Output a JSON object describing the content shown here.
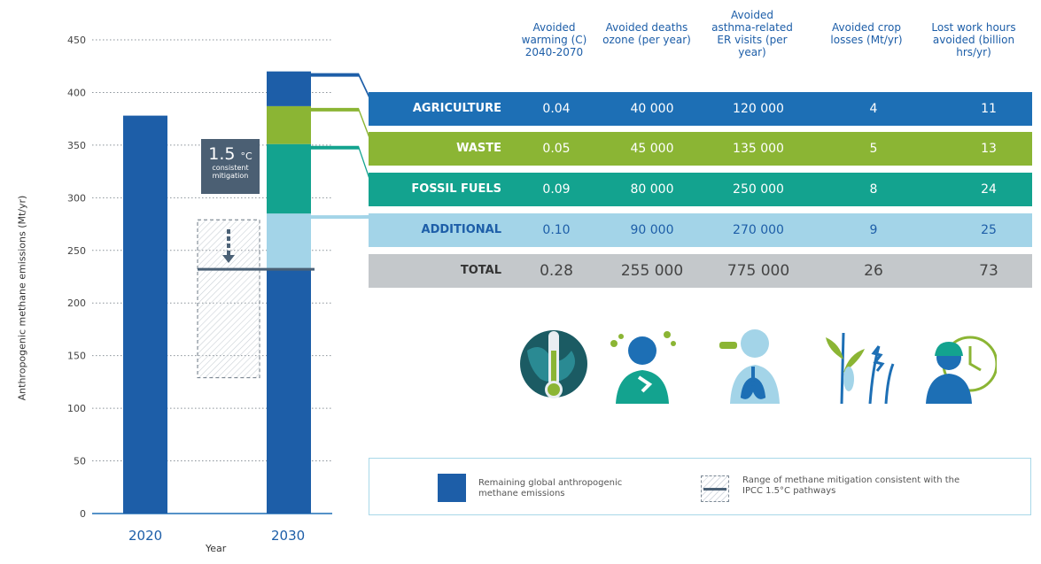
{
  "chart_data": {
    "type": "bar",
    "ylabel": "Anthropogenic methane emissions (Mt/yr)",
    "xlabel": "Year",
    "ylim": [
      0,
      450
    ],
    "yticks": [
      "0",
      "50",
      "100",
      "150",
      "200",
      "250",
      "300",
      "350",
      "400",
      "450"
    ],
    "categories": [
      "2020",
      "2030"
    ],
    "bar_2020": {
      "value": 378
    },
    "bar_2030_segments": [
      {
        "name": "Remaining global anthropogenic methane emissions",
        "value": 232,
        "color": "#1d5ea8"
      },
      {
        "name": "ADDITIONAL",
        "value": 53,
        "color": "#a3d4e8"
      },
      {
        "name": "FOSSIL FUELS",
        "value": 66,
        "color": "#13a38f"
      },
      {
        "name": "WASTE",
        "value": 36,
        "color": "#8bb534"
      },
      {
        "name": "AGRICULTURE",
        "value": 33,
        "color": "#1d5ea8"
      }
    ],
    "mitigation_range": {
      "low": 129,
      "high": 279
    },
    "pathway_line": 232,
    "arrow": {
      "from": 270,
      "to": 238
    }
  },
  "badge": {
    "value": "1.5",
    "unit": "°C",
    "caption": "consistent mitigation"
  },
  "table": {
    "columns": [
      "Avoided warming (C) 2040-2070",
      "Avoided deaths ozone (per year)",
      "Avoided asthma-related ER visits (per year)",
      "Avoided crop losses (Mt/yr)",
      "Lost work hours avoided (billion hrs/yr)"
    ],
    "rows": [
      {
        "name": "AGRICULTURE",
        "values": [
          "0.04",
          "40 000",
          "120 000",
          "4",
          "11"
        ],
        "color": "#1d6fb5"
      },
      {
        "name": "WASTE",
        "values": [
          "0.05",
          "45 000",
          "135 000",
          "5",
          "13"
        ],
        "color": "#8bb534"
      },
      {
        "name": "FOSSIL FUELS",
        "values": [
          "0.09",
          "80 000",
          "250 000",
          "8",
          "24"
        ],
        "color": "#13a38f"
      },
      {
        "name": "ADDITIONAL",
        "values": [
          "0.10",
          "90 000",
          "270 000",
          "9",
          "25"
        ],
        "color": "#a3d4e8"
      },
      {
        "name": "TOTAL",
        "values": [
          "0.28",
          "255 000",
          "775 000",
          "26",
          "73"
        ],
        "color": "#c4c8cb"
      }
    ]
  },
  "icons": [
    "globe-thermometer-icon",
    "coughing-person-icon",
    "lungs-inhaler-icon",
    "crops-icon",
    "worker-clock-icon"
  ],
  "legend": {
    "remaining": "Remaining global anthropogenic methane emissions",
    "range": "Range of methane mitigation consistent with the IPCC 1.5°C pathways"
  }
}
